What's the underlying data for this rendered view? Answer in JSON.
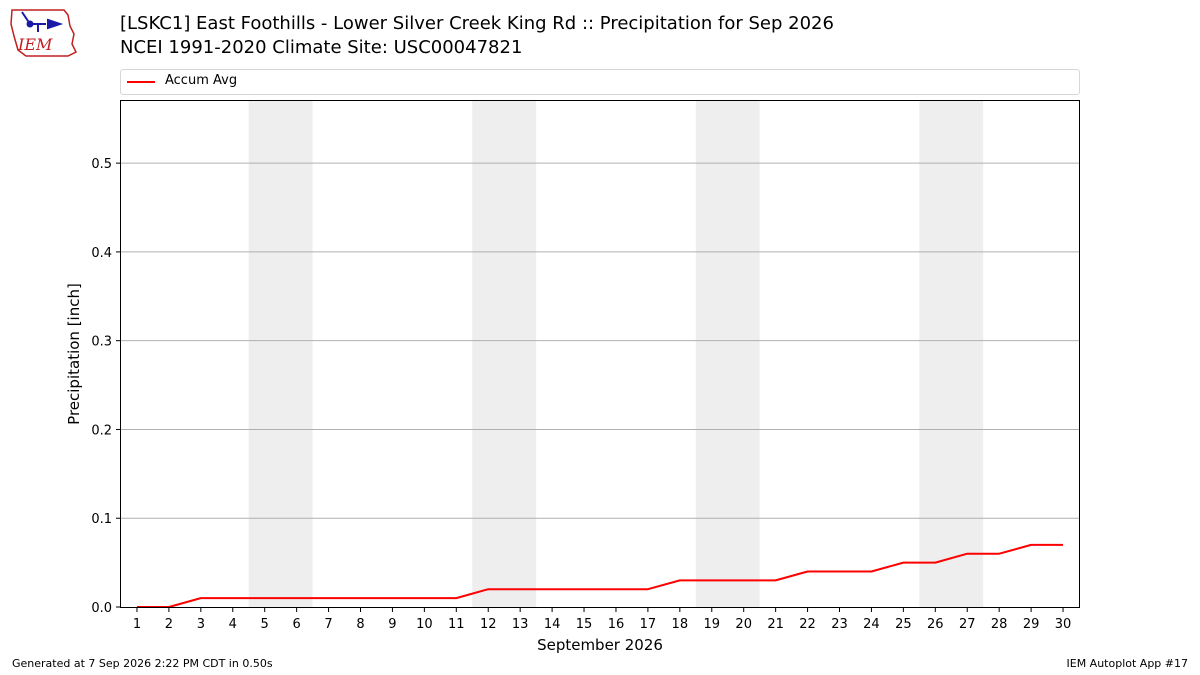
{
  "header": {
    "logo_text": "IEM",
    "title": "[LSKC1] East Foothills - Lower Silver Creek King Rd :: Precipitation for Sep 2026",
    "subtitle": "NCEI 1991-2020 Climate Site: USC00047821"
  },
  "footer": {
    "generated": "Generated at 7 Sep 2026 2:22 PM CDT in 0.50s",
    "app": "IEM Autoplot App #17"
  },
  "chart_data": {
    "type": "line",
    "xlabel": "September 2026",
    "ylabel": "Precipitation [inch]",
    "x": [
      1,
      2,
      3,
      4,
      5,
      6,
      7,
      8,
      9,
      10,
      11,
      12,
      13,
      14,
      15,
      16,
      17,
      18,
      19,
      20,
      21,
      22,
      23,
      24,
      25,
      26,
      27,
      28,
      29,
      30
    ],
    "xlim": [
      0.5,
      30.5
    ],
    "ylim": [
      0,
      0.57
    ],
    "yticks": [
      0.0,
      0.1,
      0.2,
      0.3,
      0.4,
      0.5
    ],
    "ytick_labels": [
      "0.0",
      "0.1",
      "0.2",
      "0.3",
      "0.4",
      "0.5"
    ],
    "grid": "horizontal",
    "weekend_shading": [
      [
        5,
        6
      ],
      [
        12,
        13
      ],
      [
        19,
        20
      ],
      [
        26,
        27
      ]
    ],
    "legend": "top",
    "series": [
      {
        "name": "Accum Avg",
        "color": "#ff0000",
        "values": [
          0.0,
          0.0,
          0.01,
          0.01,
          0.01,
          0.01,
          0.01,
          0.01,
          0.01,
          0.01,
          0.01,
          0.02,
          0.02,
          0.02,
          0.02,
          0.02,
          0.02,
          0.03,
          0.03,
          0.03,
          0.03,
          0.04,
          0.04,
          0.04,
          0.05,
          0.05,
          0.06,
          0.06,
          0.07,
          0.07
        ]
      }
    ]
  }
}
